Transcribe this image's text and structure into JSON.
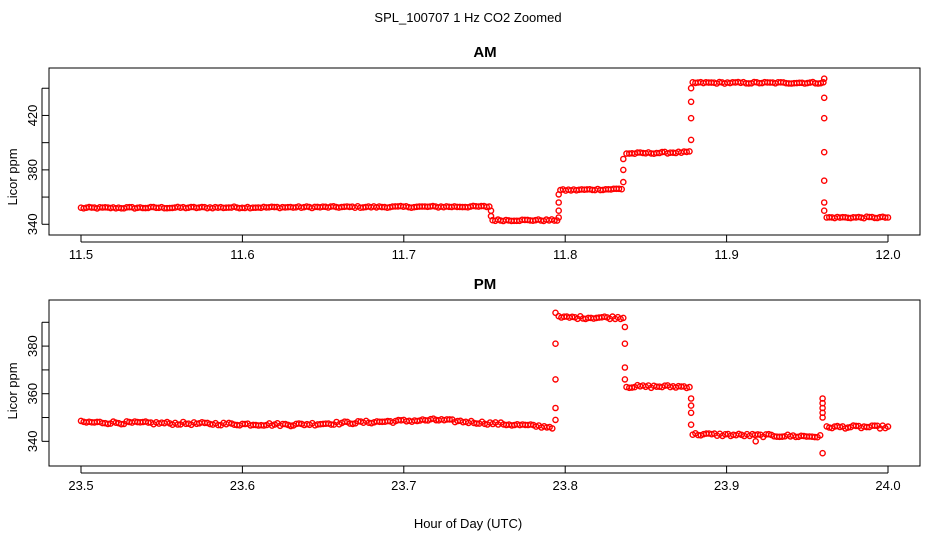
{
  "title": "SPL_100707  1 Hz CO2 Zoomed",
  "xlabel": "Hour of Day (UTC)",
  "colors": {
    "points": "#ff0000",
    "point_stroke": "#dd0000",
    "axes": "#000000",
    "background": "#ffffff"
  },
  "chart_data": [
    {
      "type": "scatter",
      "title": "AM",
      "xlabel": "",
      "ylabel": "Licor ppm",
      "xlim": [
        11.5,
        12.0
      ],
      "ylim": [
        338,
        449
      ],
      "x_ticks": [
        "11.5",
        "11.6",
        "11.7",
        "11.8",
        "11.9",
        "12.0"
      ],
      "y_ticks": [
        "340",
        "380",
        "420"
      ],
      "grid": false,
      "series": [
        {
          "marker": "open-circle",
          "segments": [
            {
              "x_start": 11.5,
              "x_end": 11.753,
              "y_start": 352,
              "y_end": 353
            },
            {
              "x_start": 11.755,
              "x_end": 11.795,
              "y_start": 343,
              "y_end": 343
            },
            {
              "x_start": 11.797,
              "x_end": 11.835,
              "y_start": 365,
              "y_end": 366
            },
            {
              "x_start": 11.838,
              "x_end": 11.877,
              "y_start": 392,
              "y_end": 393
            },
            {
              "x_start": 11.879,
              "x_end": 11.96,
              "y_start": 444,
              "y_end": 444
            },
            {
              "x_start": 11.962,
              "x_end": 12.0,
              "y_start": 345,
              "y_end": 345
            }
          ],
          "transitions": [
            {
              "x": 11.754,
              "points": [
                350,
                346
              ]
            },
            {
              "x": 11.796,
              "points": [
                345,
                350,
                356,
                362
              ]
            },
            {
              "x": 11.836,
              "points": [
                371,
                380,
                388
              ]
            },
            {
              "x": 11.878,
              "points": [
                402,
                418,
                430,
                440
              ]
            },
            {
              "x": 11.9605,
              "points": [
                447,
                433,
                418,
                393,
                372,
                356,
                350
              ]
            }
          ]
        }
      ]
    },
    {
      "type": "scatter",
      "title": "PM",
      "xlabel": "",
      "ylabel": "Licor ppm",
      "xlim": [
        23.5,
        24.0
      ],
      "ylim": [
        333,
        396
      ],
      "x_ticks": [
        "23.5",
        "23.6",
        "23.7",
        "23.8",
        "23.9",
        "24.0"
      ],
      "y_ticks": [
        "340",
        "360",
        "380"
      ],
      "grid": false,
      "series": [
        {
          "marker": "open-circle",
          "segments": [
            {
              "x_start": 23.5,
              "x_end": 23.63,
              "y_start": 348,
              "y_end": 347
            },
            {
              "x_start": 23.63,
              "x_end": 23.72,
              "y_start": 347,
              "y_end": 349
            },
            {
              "x_start": 23.72,
              "x_end": 23.792,
              "y_start": 349,
              "y_end": 346
            },
            {
              "x_start": 23.796,
              "x_end": 23.836,
              "y_start": 392,
              "y_end": 392
            },
            {
              "x_start": 23.838,
              "x_end": 23.877,
              "y_start": 363,
              "y_end": 363
            },
            {
              "x_start": 23.879,
              "x_end": 23.958,
              "y_start": 343,
              "y_end": 342
            },
            {
              "x_start": 23.962,
              "x_end": 24.0,
              "y_start": 346,
              "y_end": 346
            }
          ],
          "transitions": [
            {
              "x": 23.794,
              "points": [
                349,
                354,
                366,
                381,
                394
              ]
            },
            {
              "x": 23.837,
              "points": [
                388,
                381,
                371,
                366
              ]
            },
            {
              "x": 23.878,
              "points": [
                358,
                355,
                352,
                347
              ]
            },
            {
              "x": 23.9595,
              "points": [
                335,
                350,
                352,
                354,
                356,
                358
              ]
            },
            {
              "x": 23.918,
              "points": [
                340
              ]
            }
          ]
        }
      ]
    }
  ]
}
